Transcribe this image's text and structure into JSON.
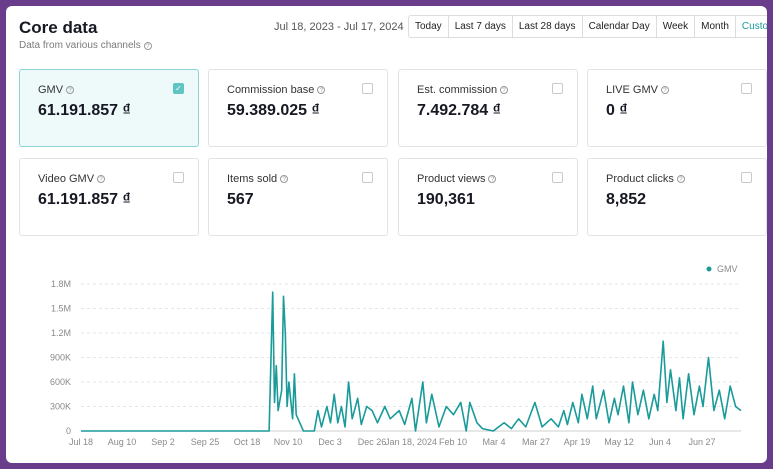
{
  "header": {
    "title": "Core data",
    "subtitle": "Data from various channels",
    "date_range": "Jul 18, 2023 - Jul 17, 2024",
    "periods": [
      "Today",
      "Last 7 days",
      "Last 28 days",
      "Calendar Day",
      "Week",
      "Month",
      "Custom"
    ],
    "active_period": "Custom"
  },
  "metrics": [
    {
      "label": "GMV",
      "value": "61.191.857 ₫",
      "checked": true
    },
    {
      "label": "Commission base",
      "value": "59.389.025 ₫",
      "checked": false
    },
    {
      "label": "Est. commission",
      "value": "7.492.784 ₫",
      "checked": false
    },
    {
      "label": "LIVE GMV",
      "value": "0 ₫",
      "checked": false
    },
    {
      "label": "Video GMV",
      "value": "61.191.857 ₫",
      "checked": false
    },
    {
      "label": "Items sold",
      "value": "567",
      "checked": false
    },
    {
      "label": "Product views",
      "value": "190,361",
      "checked": false
    },
    {
      "label": "Product clicks",
      "value": "8,852",
      "checked": false
    }
  ],
  "colors": {
    "accent": "#1a9b9a",
    "line": "#1a9b9a"
  },
  "chart_data": {
    "type": "line",
    "legend": [
      "GMV"
    ],
    "legend_position": "top-right",
    "grid": true,
    "ylim": [
      0,
      1800000
    ],
    "y_ticks": [
      "0",
      "300K",
      "600K",
      "900K",
      "1.2M",
      "1.5M",
      "1.8M"
    ],
    "x_ticks": [
      "Jul 18",
      "Aug 10",
      "Sep 2",
      "Sep 25",
      "Oct 18",
      "Nov 10",
      "Dec 3",
      "Dec 26",
      "Jan 18, 2024",
      "Feb 10",
      "Mar 4",
      "Mar 27",
      "Apr 19",
      "May 12",
      "Jun 4",
      "Jun 27"
    ],
    "series": [
      {
        "name": "GMV",
        "points": [
          [
            "2023-07-18",
            0
          ],
          [
            "2023-10-30",
            0
          ],
          [
            "2023-11-01",
            1700000
          ],
          [
            "2023-11-02",
            350000
          ],
          [
            "2023-11-03",
            800000
          ],
          [
            "2023-11-04",
            250000
          ],
          [
            "2023-11-06",
            500000
          ],
          [
            "2023-11-07",
            1650000
          ],
          [
            "2023-11-08",
            1200000
          ],
          [
            "2023-11-09",
            300000
          ],
          [
            "2023-11-10",
            600000
          ],
          [
            "2023-11-12",
            150000
          ],
          [
            "2023-11-13",
            700000
          ],
          [
            "2023-11-14",
            200000
          ],
          [
            "2023-11-16",
            100000
          ],
          [
            "2023-11-18",
            0
          ],
          [
            "2023-11-24",
            0
          ],
          [
            "2023-11-26",
            250000
          ],
          [
            "2023-11-28",
            50000
          ],
          [
            "2023-12-01",
            300000
          ],
          [
            "2023-12-03",
            100000
          ],
          [
            "2023-12-05",
            450000
          ],
          [
            "2023-12-07",
            100000
          ],
          [
            "2023-12-09",
            300000
          ],
          [
            "2023-12-11",
            50000
          ],
          [
            "2023-12-13",
            600000
          ],
          [
            "2023-12-15",
            150000
          ],
          [
            "2023-12-18",
            400000
          ],
          [
            "2023-12-20",
            80000
          ],
          [
            "2023-12-23",
            300000
          ],
          [
            "2023-12-26",
            250000
          ],
          [
            "2023-12-29",
            100000
          ],
          [
            "2024-01-02",
            300000
          ],
          [
            "2024-01-05",
            150000
          ],
          [
            "2024-01-10",
            250000
          ],
          [
            "2024-01-13",
            80000
          ],
          [
            "2024-01-17",
            400000
          ],
          [
            "2024-01-19",
            0
          ],
          [
            "2024-01-23",
            600000
          ],
          [
            "2024-01-25",
            100000
          ],
          [
            "2024-01-28",
            450000
          ],
          [
            "2024-02-01",
            50000
          ],
          [
            "2024-02-05",
            300000
          ],
          [
            "2024-02-09",
            200000
          ],
          [
            "2024-02-13",
            350000
          ],
          [
            "2024-02-16",
            0
          ],
          [
            "2024-02-18",
            350000
          ],
          [
            "2024-02-22",
            100000
          ],
          [
            "2024-02-25",
            30000
          ],
          [
            "2024-03-02",
            0
          ],
          [
            "2024-03-08",
            100000
          ],
          [
            "2024-03-12",
            30000
          ],
          [
            "2024-03-16",
            150000
          ],
          [
            "2024-03-20",
            50000
          ],
          [
            "2024-03-25",
            350000
          ],
          [
            "2024-03-29",
            50000
          ],
          [
            "2024-04-03",
            150000
          ],
          [
            "2024-04-07",
            50000
          ],
          [
            "2024-04-10",
            250000
          ],
          [
            "2024-04-12",
            80000
          ],
          [
            "2024-04-15",
            350000
          ],
          [
            "2024-04-18",
            100000
          ],
          [
            "2024-04-20",
            450000
          ],
          [
            "2024-04-23",
            150000
          ],
          [
            "2024-04-26",
            550000
          ],
          [
            "2024-04-28",
            150000
          ],
          [
            "2024-05-02",
            500000
          ],
          [
            "2024-05-05",
            100000
          ],
          [
            "2024-05-08",
            400000
          ],
          [
            "2024-05-10",
            200000
          ],
          [
            "2024-05-13",
            550000
          ],
          [
            "2024-05-16",
            100000
          ],
          [
            "2024-05-18",
            600000
          ],
          [
            "2024-05-21",
            200000
          ],
          [
            "2024-05-24",
            500000
          ],
          [
            "2024-05-27",
            150000
          ],
          [
            "2024-05-30",
            450000
          ],
          [
            "2024-06-01",
            250000
          ],
          [
            "2024-06-04",
            1100000
          ],
          [
            "2024-06-06",
            350000
          ],
          [
            "2024-06-08",
            750000
          ],
          [
            "2024-06-11",
            250000
          ],
          [
            "2024-06-13",
            650000
          ],
          [
            "2024-06-15",
            150000
          ],
          [
            "2024-06-18",
            700000
          ],
          [
            "2024-06-21",
            200000
          ],
          [
            "2024-06-24",
            550000
          ],
          [
            "2024-06-26",
            300000
          ],
          [
            "2024-06-29",
            900000
          ],
          [
            "2024-07-02",
            250000
          ],
          [
            "2024-07-05",
            500000
          ],
          [
            "2024-07-08",
            150000
          ],
          [
            "2024-07-11",
            550000
          ],
          [
            "2024-07-14",
            300000
          ],
          [
            "2024-07-17",
            250000
          ]
        ]
      }
    ]
  }
}
